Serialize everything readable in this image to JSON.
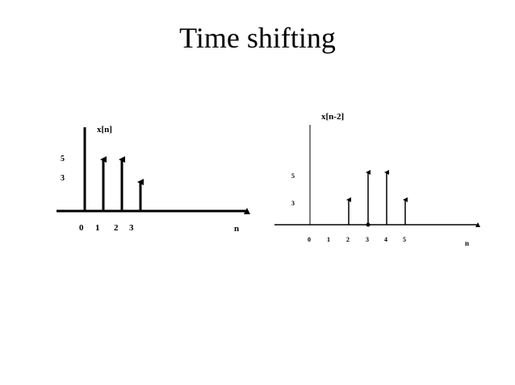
{
  "title": "Time shifting",
  "left_plot": {
    "ylabel": "x[n]",
    "xlabel": "n",
    "y_ticks": [
      "5",
      "3"
    ],
    "x_ticks": [
      "0",
      "1",
      "2",
      "3"
    ]
  },
  "right_plot": {
    "ylabel": "x[n-2]",
    "xlabel": "n",
    "y_ticks": [
      "5",
      "3"
    ],
    "x_ticks": [
      "0",
      "1",
      "2",
      "3",
      "4",
      "5"
    ]
  },
  "colors": {
    "ink": "#000000"
  }
}
